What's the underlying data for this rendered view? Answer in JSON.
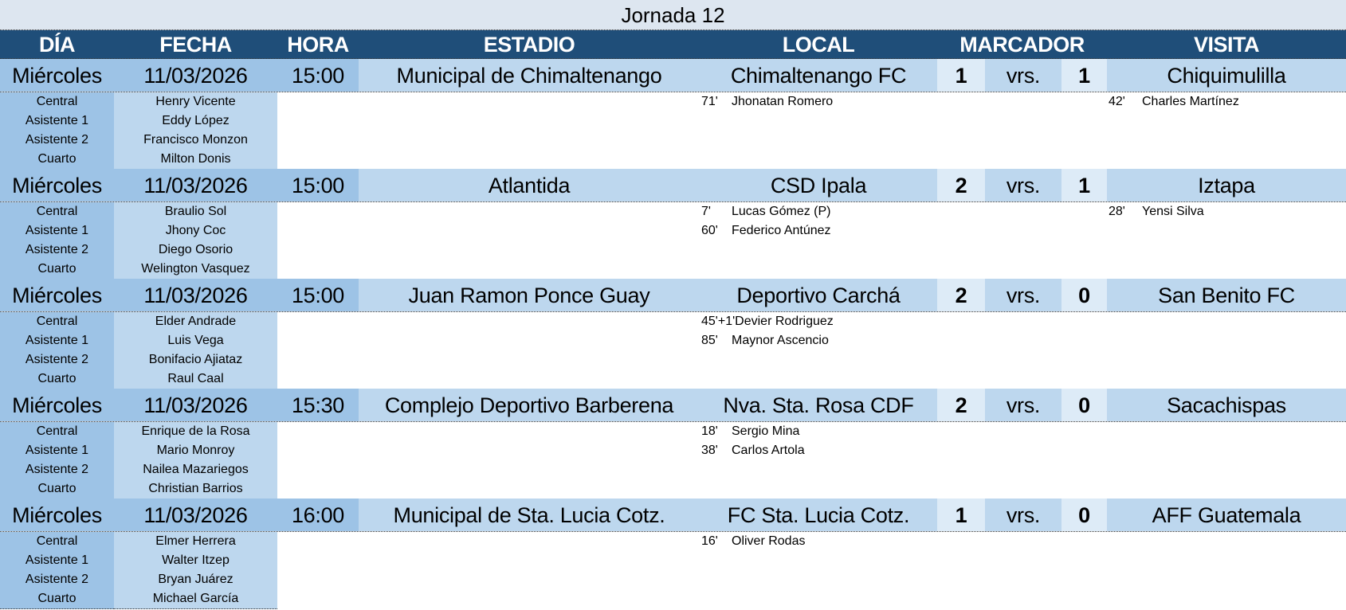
{
  "title": "Jornada 12",
  "headers": {
    "dia": "DÍA",
    "fecha": "FECHA",
    "hora": "HORA",
    "estadio": "ESTADIO",
    "local": "LOCAL",
    "marcador": "MARCADOR",
    "visita": "VISITA"
  },
  "colors": {
    "header": "#1F4E79",
    "title_bg": "#DDE6F0",
    "dark": "#9DC3E6",
    "light": "#BDD7EE",
    "pale": "#DDEBF7"
  },
  "matches": [
    {
      "dia": "Miércoles",
      "fecha": "11/03/2026",
      "hora": "15:00",
      "estadio": "Municipal de Chimaltenango",
      "local": "Chimaltenango FC",
      "goles_local": "1",
      "vs": "vrs.",
      "goles_visita": "1",
      "visita": "Chiquimulilla",
      "referees": [
        {
          "role": "Central",
          "name": "Henry Vicente"
        },
        {
          "role": "Asistente 1",
          "name": "Eddy López"
        },
        {
          "role": "Asistente 2",
          "name": "Francisco Monzon"
        },
        {
          "role": "Cuarto",
          "name": "Milton Donis"
        }
      ],
      "local_goals": [
        {
          "min": "71'",
          "player": "Jhonatan Romero"
        }
      ],
      "visita_goals": [
        {
          "min": "42'",
          "player": "Charles Martínez"
        }
      ]
    },
    {
      "dia": "Miércoles",
      "fecha": "11/03/2026",
      "hora": "15:00",
      "estadio": "Atlantida",
      "local": "CSD Ipala",
      "goles_local": "2",
      "vs": "vrs.",
      "goles_visita": "1",
      "visita": "Iztapa",
      "referees": [
        {
          "role": "Central",
          "name": "Braulio Sol"
        },
        {
          "role": "Asistente 1",
          "name": "Jhony Coc"
        },
        {
          "role": "Asistente 2",
          "name": "Diego Osorio"
        },
        {
          "role": "Cuarto",
          "name": "Welington Vasquez"
        }
      ],
      "local_goals": [
        {
          "min": "7'",
          "player": "Lucas Gómez (P)"
        },
        {
          "min": "60'",
          "player": "Federico Antúnez"
        }
      ],
      "visita_goals": [
        {
          "min": "28'",
          "player": "Yensi Silva"
        }
      ]
    },
    {
      "dia": "Miércoles",
      "fecha": "11/03/2026",
      "hora": "15:00",
      "estadio": "Juan Ramon Ponce Guay",
      "local": "Deportivo Carchá",
      "goles_local": "2",
      "vs": "vrs.",
      "goles_visita": "0",
      "visita": "San Benito FC",
      "referees": [
        {
          "role": "Central",
          "name": "Elder Andrade"
        },
        {
          "role": "Asistente 1",
          "name": "Luis Vega"
        },
        {
          "role": "Asistente 2",
          "name": "Bonifacio Ajiataz"
        },
        {
          "role": "Cuarto",
          "name": "Raul Caal"
        }
      ],
      "local_goals": [
        {
          "min": "45'+1'",
          "player": "Devier Rodriguez"
        },
        {
          "min": "85'",
          "player": "Maynor Ascencio"
        }
      ],
      "visita_goals": []
    },
    {
      "dia": "Miércoles",
      "fecha": "11/03/2026",
      "hora": "15:30",
      "estadio": "Complejo Deportivo Barberena",
      "local": "Nva. Sta. Rosa CDF",
      "goles_local": "2",
      "vs": "vrs.",
      "goles_visita": "0",
      "visita": "Sacachispas",
      "referees": [
        {
          "role": "Central",
          "name": "Enrique de la Rosa"
        },
        {
          "role": "Asistente 1",
          "name": "Mario Monroy"
        },
        {
          "role": "Asistente 2",
          "name": "Nailea Mazariegos"
        },
        {
          "role": "Cuarto",
          "name": "Christian Barrios"
        }
      ],
      "local_goals": [
        {
          "min": "18'",
          "player": "Sergio Mina"
        },
        {
          "min": "38'",
          "player": "Carlos Artola"
        }
      ],
      "visita_goals": []
    },
    {
      "dia": "Miércoles",
      "fecha": "11/03/2026",
      "hora": "16:00",
      "estadio": "Municipal de Sta. Lucia Cotz.",
      "local": "FC Sta. Lucia Cotz.",
      "goles_local": "1",
      "vs": "vrs.",
      "goles_visita": "0",
      "visita": "AFF Guatemala",
      "referees": [
        {
          "role": "Central",
          "name": "Elmer Herrera"
        },
        {
          "role": "Asistente 1",
          "name": "Walter Itzep"
        },
        {
          "role": "Asistente 2",
          "name": "Bryan Juárez"
        },
        {
          "role": "Cuarto",
          "name": "Michael García"
        }
      ],
      "local_goals": [
        {
          "min": "16'",
          "player": "Oliver Rodas"
        }
      ],
      "visita_goals": []
    }
  ]
}
